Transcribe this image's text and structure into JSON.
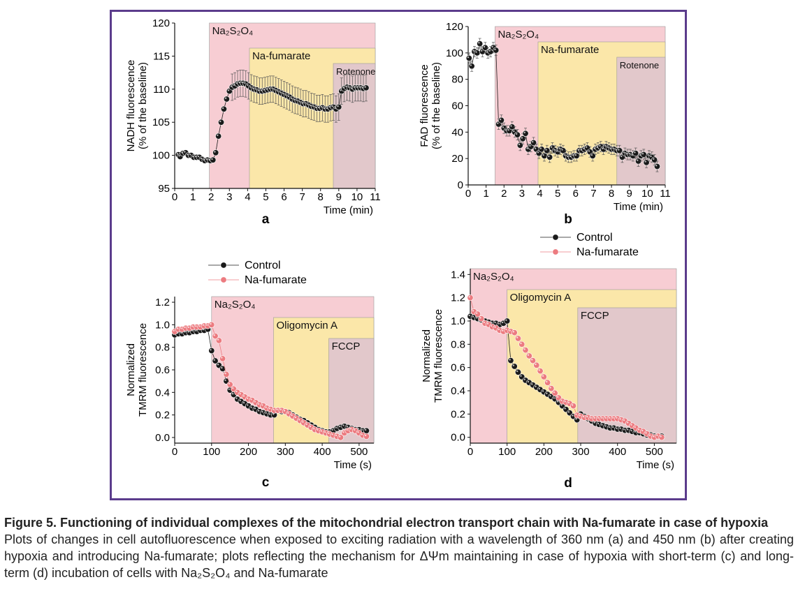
{
  "caption": {
    "title": "Figure 5. Functioning of individual complexes of the mitochondrial electron transport chain with Na-fumarate in case of hypoxia",
    "body_1": "Plots of changes in cell autofluorescence when exposed to exciting radiation with a wavelength of 360 nm (a) and 450 nm (b) after creating hypoxia and introducing Na-fumarate; plots reflecting the mechanism for ΔΨm maintaining in case of hypoxia with short-term (c) and long-term (d) incubation of cells with ",
    "formula": "Na₂S₂O₄",
    "body_2": " and Na-fumarate"
  },
  "colors": {
    "frame": "#5b3c8c",
    "treatment_1": "#f7cdd3",
    "treatment_2": "#fbe7a9",
    "treatment_3": "#e2c8cb",
    "control": "#1a1a1a",
    "na_fumarate": "#ec7b80"
  },
  "legend": {
    "control": "Control",
    "na_fumarate": "Na-fumarate"
  },
  "chart_data": [
    {
      "panel": "a",
      "type": "scatter",
      "ylabel_1": "NADH fluorescence",
      "ylabel_2": "(% of the baseline)",
      "xlabel": "Time (min)",
      "xlim": [
        0,
        11
      ],
      "ylim": [
        95,
        120
      ],
      "xticks": [
        0,
        1,
        2,
        3,
        4,
        5,
        6,
        7,
        8,
        9,
        10,
        11
      ],
      "yticks": [
        95,
        100,
        105,
        110,
        115,
        120
      ],
      "regions": [
        {
          "label": "Na₂S₂O₄",
          "x_start": 1.9,
          "x_end": 11,
          "color": "#f7cdd3"
        },
        {
          "label": "Na-fumarate",
          "x_start": 4.1,
          "x_end": 11,
          "color": "#fbe7a9"
        },
        {
          "label": "Rotenone",
          "x_start": 8.7,
          "x_end": 11,
          "color": "#e2c8cb"
        }
      ],
      "series": [
        {
          "color": "#1a1a1a",
          "error": 1,
          "x": [
            0.2,
            0.3,
            0.45,
            0.6,
            0.75,
            0.9,
            1.05,
            1.2,
            1.35,
            1.5,
            1.65,
            1.8,
            1.95,
            2.1,
            2.25,
            2.4,
            2.55,
            2.7,
            2.85,
            3.0,
            3.15,
            3.3,
            3.45,
            3.6,
            3.75,
            3.9,
            4.05,
            4.2,
            4.35,
            4.5,
            4.65,
            4.8,
            4.95,
            5.1,
            5.25,
            5.4,
            5.55,
            5.7,
            5.85,
            6.0,
            6.15,
            6.3,
            6.45,
            6.6,
            6.75,
            6.9,
            7.05,
            7.2,
            7.35,
            7.5,
            7.65,
            7.8,
            7.95,
            8.1,
            8.25,
            8.4,
            8.55,
            8.7,
            8.85,
            9.0,
            9.15,
            9.3,
            9.45,
            9.6,
            9.75,
            9.9,
            10.05,
            10.2,
            10.35,
            10.5
          ],
          "y": [
            100.1,
            99.8,
            100.3,
            100.4,
            100.0,
            100.0,
            99.7,
            99.7,
            99.7,
            99.4,
            99.2,
            99.3,
            99.2,
            99.3,
            100.4,
            102.9,
            105.0,
            107.0,
            108.5,
            109.7,
            110.3,
            110.5,
            110.8,
            110.9,
            110.9,
            110.8,
            110.5,
            110.2,
            110.0,
            109.9,
            109.7,
            109.7,
            109.8,
            109.9,
            110.0,
            110.0,
            109.8,
            109.6,
            109.4,
            109.2,
            109.0,
            108.8,
            108.5,
            108.3,
            108.2,
            108.0,
            107.8,
            107.8,
            107.6,
            107.4,
            107.3,
            107.1,
            107.1,
            107.2,
            107.0,
            107.0,
            107.2,
            107.3,
            107.0,
            107.3,
            109.7,
            110.1,
            110.3,
            110.2,
            110.0,
            110.2,
            110.2,
            110.2,
            110.1,
            110.2
          ],
          "err_from": 20,
          "err_size": 2.0
        }
      ]
    },
    {
      "panel": "b",
      "type": "scatter",
      "ylabel_1": "FAD fluorescence",
      "ylabel_2": "(% of the baseline)",
      "xlabel": "Time (min)",
      "xlim": [
        0,
        11
      ],
      "ylim": [
        0,
        120
      ],
      "xticks": [
        0,
        1,
        2,
        3,
        4,
        5,
        6,
        7,
        8,
        9,
        10,
        11
      ],
      "yticks": [
        0,
        20,
        40,
        60,
        80,
        100,
        120
      ],
      "regions": [
        {
          "label": "Na₂S₂O₄",
          "x_start": 1.5,
          "x_end": 11,
          "color": "#f7cdd3"
        },
        {
          "label": "Na-fumarate",
          "x_start": 3.9,
          "x_end": 11,
          "color": "#fbe7a9"
        },
        {
          "label": "Rotenone",
          "x_start": 8.3,
          "x_end": 11,
          "color": "#e2c8cb"
        }
      ],
      "series": [
        {
          "color": "#1a1a1a",
          "x": [
            0.05,
            0.2,
            0.35,
            0.5,
            0.65,
            0.8,
            0.95,
            1.1,
            1.25,
            1.4,
            1.55,
            1.7,
            1.85,
            2.0,
            2.15,
            2.3,
            2.45,
            2.6,
            2.75,
            2.9,
            3.05,
            3.2,
            3.35,
            3.5,
            3.65,
            3.8,
            3.95,
            4.1,
            4.25,
            4.4,
            4.55,
            4.7,
            4.85,
            5.0,
            5.15,
            5.3,
            5.45,
            5.6,
            5.75,
            5.9,
            6.05,
            6.2,
            6.35,
            6.5,
            6.65,
            6.8,
            6.95,
            7.1,
            7.25,
            7.4,
            7.55,
            7.7,
            7.85,
            8.0,
            8.15,
            8.3,
            8.45,
            8.6,
            8.75,
            8.9,
            9.05,
            9.2,
            9.35,
            9.5,
            9.65,
            9.8,
            9.95,
            10.1,
            10.25,
            10.4,
            10.55
          ],
          "y": [
            96,
            90,
            101,
            100,
            107,
            101,
            104,
            100,
            101,
            104,
            102,
            46,
            49,
            43,
            41,
            41,
            44,
            40,
            38,
            30,
            35,
            39,
            27,
            29,
            32,
            27,
            24,
            27,
            22,
            26,
            21,
            28,
            26,
            25,
            27,
            26,
            22,
            21,
            21,
            22,
            22,
            26,
            26,
            27,
            28,
            25,
            22,
            27,
            28,
            29,
            27,
            29,
            28,
            27,
            27,
            26,
            26,
            21,
            24,
            23,
            23,
            22,
            24,
            18,
            22,
            23,
            17,
            22,
            21,
            19,
            14
          ],
          "err_size": 4
        }
      ]
    },
    {
      "panel": "c",
      "type": "scatter",
      "ylabel_1": "Normalized",
      "ylabel_2": "TMRM fluorescence",
      "xlabel": "Time (s)",
      "xlim": [
        0,
        540
      ],
      "ylim": [
        -0.05,
        1.25
      ],
      "xticks": [
        0,
        100,
        200,
        300,
        400,
        500
      ],
      "yticks": [
        0,
        0.2,
        0.4,
        0.6,
        0.8,
        1.0,
        1.2
      ],
      "regions": [
        {
          "label": "Na₂S₂O₄",
          "x_start": 100,
          "x_end": 540,
          "color": "#f7cdd3"
        },
        {
          "label": "Oligomycin A",
          "x_start": 268,
          "x_end": 540,
          "color": "#fbe7a9"
        },
        {
          "label": "FCCP",
          "x_start": 418,
          "x_end": 540,
          "color": "#e2c8cb"
        }
      ],
      "series": [
        {
          "name": "Control",
          "color": "#1a1a1a",
          "x": [
            0,
            10,
            20,
            30,
            40,
            50,
            60,
            70,
            80,
            90,
            100,
            110,
            120,
            130,
            140,
            150,
            160,
            170,
            180,
            190,
            200,
            210,
            220,
            230,
            240,
            250,
            260,
            270,
            280,
            290,
            300,
            310,
            320,
            330,
            340,
            350,
            360,
            370,
            380,
            390,
            400,
            410,
            420,
            430,
            440,
            450,
            460,
            470,
            480,
            490,
            500,
            510,
            520
          ],
          "y": [
            0.91,
            0.92,
            0.92,
            0.93,
            0.93,
            0.94,
            0.94,
            0.95,
            0.95,
            0.96,
            0.77,
            0.68,
            0.64,
            0.61,
            0.5,
            0.42,
            0.38,
            0.34,
            0.32,
            0.3,
            0.28,
            0.26,
            0.25,
            0.23,
            0.22,
            0.21,
            0.2,
            0.2,
            0.24,
            0.23,
            0.23,
            0.22,
            0.2,
            0.18,
            0.16,
            0.15,
            0.13,
            0.11,
            0.09,
            0.07,
            0.06,
            0.05,
            0.05,
            0.06,
            0.08,
            0.09,
            0.1,
            0.09,
            0.08,
            0.07,
            0.07,
            0.06,
            0.06
          ]
        },
        {
          "name": "Na-fumarate",
          "color": "#ec7b80",
          "x": [
            0,
            10,
            20,
            30,
            40,
            50,
            60,
            70,
            80,
            90,
            100,
            110,
            120,
            130,
            140,
            150,
            160,
            170,
            180,
            190,
            200,
            210,
            220,
            230,
            240,
            250,
            260,
            270,
            280,
            290,
            300,
            310,
            320,
            330,
            340,
            350,
            360,
            370,
            380,
            390,
            400,
            410,
            420,
            430,
            440,
            450,
            460,
            470,
            480,
            490,
            500,
            510,
            520
          ],
          "y": [
            0.94,
            0.96,
            0.96,
            0.97,
            0.97,
            0.98,
            0.98,
            0.98,
            0.99,
            0.99,
            1.0,
            0.9,
            0.86,
            0.7,
            0.56,
            0.47,
            0.43,
            0.4,
            0.38,
            0.36,
            0.34,
            0.33,
            0.31,
            0.29,
            0.28,
            0.26,
            0.25,
            0.24,
            0.24,
            0.24,
            0.23,
            0.21,
            0.19,
            0.17,
            0.15,
            0.13,
            0.11,
            0.09,
            0.07,
            0.06,
            0.05,
            0.04,
            0.03,
            0.02,
            0.01,
            0.0,
            0.04,
            0.06,
            0.07,
            0.06,
            0.04,
            0.02,
            0.01
          ]
        }
      ]
    },
    {
      "panel": "d",
      "type": "scatter",
      "ylabel_1": "Normalized",
      "ylabel_2": "TMRM fluorescence",
      "xlabel": "Time (s)",
      "xlim": [
        0,
        560
      ],
      "ylim": [
        -0.05,
        1.45
      ],
      "xticks": [
        0,
        100,
        200,
        300,
        400,
        500
      ],
      "yticks": [
        0,
        0.2,
        0.4,
        0.6,
        0.8,
        1.0,
        1.2,
        1.4
      ],
      "regions": [
        {
          "label": "Na₂S₂O₄",
          "x_start": -60,
          "x_end": 560,
          "color": "#f7cdd3"
        },
        {
          "label": "Oligomycin A",
          "x_start": 100,
          "x_end": 560,
          "color": "#fbe7a9"
        },
        {
          "label": "FCCP",
          "x_start": 292,
          "x_end": 560,
          "color": "#e2c8cb"
        }
      ],
      "series": [
        {
          "name": "Control",
          "color": "#1a1a1a",
          "x": [
            0,
            10,
            20,
            30,
            40,
            50,
            60,
            70,
            80,
            90,
            100,
            110,
            120,
            130,
            140,
            150,
            160,
            170,
            180,
            190,
            200,
            210,
            220,
            230,
            240,
            250,
            260,
            270,
            280,
            290,
            300,
            310,
            320,
            330,
            340,
            350,
            360,
            370,
            380,
            390,
            400,
            410,
            420,
            430,
            440,
            450,
            460,
            470,
            480,
            490,
            500,
            510,
            520
          ],
          "y": [
            1.04,
            1.03,
            1.02,
            1.01,
            1.0,
            0.99,
            0.98,
            0.98,
            0.97,
            0.98,
            1.0,
            0.66,
            0.61,
            0.56,
            0.52,
            0.49,
            0.47,
            0.45,
            0.43,
            0.41,
            0.39,
            0.37,
            0.35,
            0.33,
            0.3,
            0.27,
            0.24,
            0.21,
            0.18,
            0.15,
            0.2,
            0.18,
            0.16,
            0.14,
            0.12,
            0.11,
            0.1,
            0.09,
            0.08,
            0.08,
            0.07,
            0.07,
            0.06,
            0.06,
            0.05,
            0.04,
            0.04,
            0.03,
            0.02,
            0.02,
            0.01,
            0.01,
            0.01
          ]
        },
        {
          "name": "Na-fumarate",
          "color": "#ec7b80",
          "x": [
            0,
            10,
            20,
            30,
            40,
            50,
            60,
            70,
            80,
            90,
            100,
            110,
            120,
            130,
            140,
            150,
            160,
            170,
            180,
            190,
            200,
            210,
            220,
            230,
            240,
            250,
            260,
            270,
            280,
            290,
            300,
            310,
            320,
            330,
            340,
            350,
            360,
            370,
            380,
            390,
            400,
            410,
            420,
            430,
            440,
            450,
            460,
            470,
            480,
            490,
            500,
            510,
            520
          ],
          "y": [
            1.2,
            1.08,
            1.06,
            1.02,
            0.98,
            0.97,
            0.95,
            0.94,
            0.92,
            0.91,
            0.92,
            0.91,
            0.9,
            0.85,
            0.8,
            0.75,
            0.7,
            0.66,
            0.62,
            0.57,
            0.52,
            0.47,
            0.42,
            0.38,
            0.34,
            0.31,
            0.3,
            0.29,
            0.27,
            0.19,
            0.18,
            0.17,
            0.17,
            0.16,
            0.16,
            0.16,
            0.16,
            0.16,
            0.16,
            0.16,
            0.16,
            0.15,
            0.14,
            0.12,
            0.1,
            0.08,
            0.06,
            0.05,
            0.03,
            0.01,
            0.0,
            0.01,
            0.0
          ]
        }
      ]
    }
  ]
}
